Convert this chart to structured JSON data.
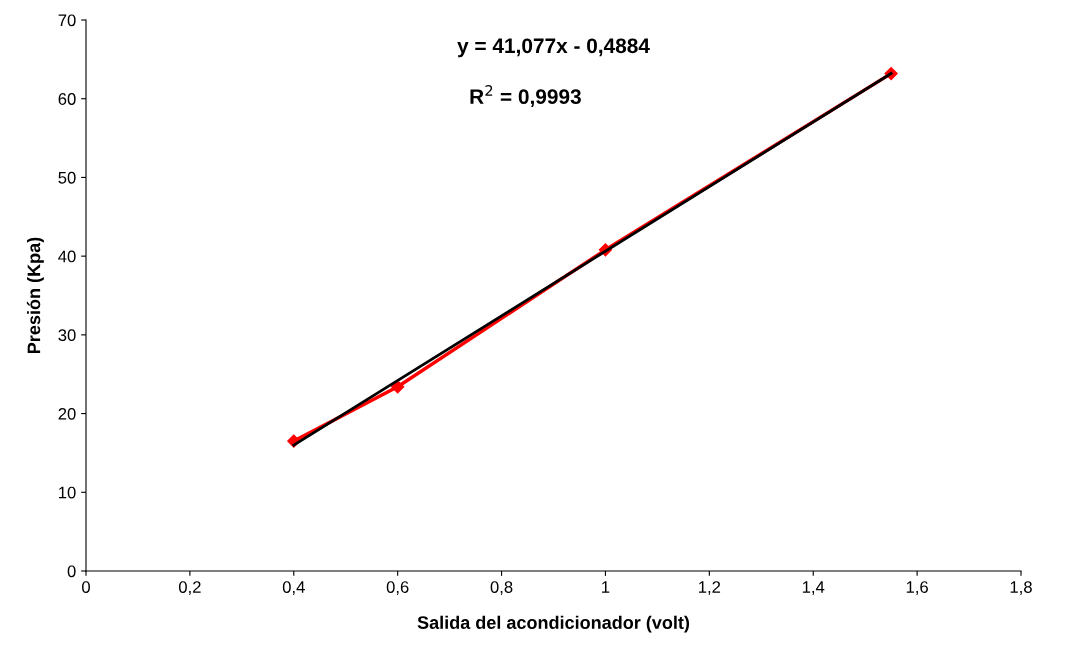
{
  "chart_data": {
    "type": "line",
    "xlabel": "Salida del acondicionador (volt)",
    "ylabel": "Presión (Kpa)",
    "series": [
      {
        "color": "#000000",
        "x": [
          0.4,
          1.55
        ],
        "values": [
          16.0,
          63.2
        ],
        "marker": "none"
      },
      {
        "color": "#ff0000",
        "x": [
          0.4,
          0.6,
          1.0,
          1.55
        ],
        "values": [
          16.5,
          23.4,
          40.8,
          63.2
        ],
        "marker": "diamond"
      }
    ],
    "xlim": [
      0,
      1.8
    ],
    "xticks": [
      0,
      {
        "value": 0.2,
        "label": "0,2"
      },
      {
        "value": 0.4,
        "label": "0,4"
      },
      {
        "value": 0.6,
        "label": "0,6"
      },
      {
        "value": 0.8,
        "label": "0,8"
      },
      1,
      {
        "value": 1.2,
        "label": "1,2"
      },
      {
        "value": 1.4,
        "label": "1,4"
      },
      {
        "value": 1.6,
        "label": "1,6"
      },
      {
        "value": 1.8,
        "label": "1,8"
      }
    ],
    "ylim": [
      0,
      70
    ],
    "yticks": [
      0,
      10,
      20,
      30,
      40,
      50,
      60,
      70
    ],
    "grid": false,
    "legend": false,
    "annotations": [
      "y = 41,077x - 0,4884",
      "R$^{2}$ = 0,9993"
    ]
  }
}
